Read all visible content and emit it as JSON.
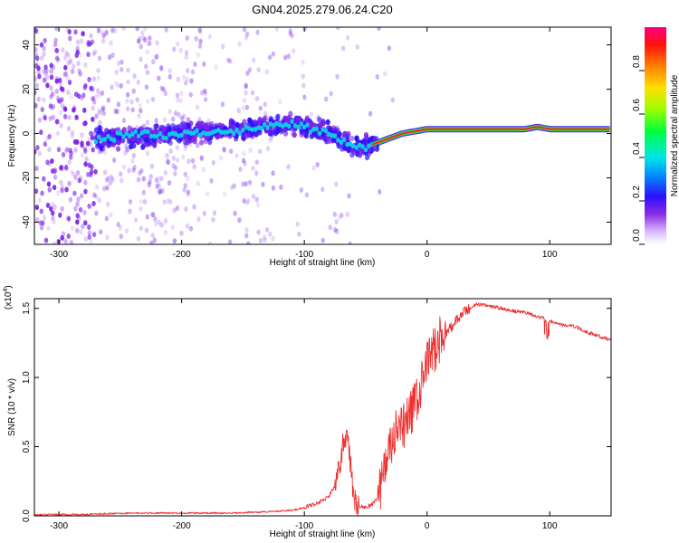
{
  "title": "GN04.2025.279.06.24.C20",
  "colors": {
    "snr_line": "#ee3030",
    "spec_point": "#7a20e8",
    "ridge_hot": "#ff2020",
    "ridge_warm": "#30e040",
    "ridge_cool": "#10c8e8"
  },
  "chart_data": [
    {
      "id": "spectrogram",
      "type": "heatmap",
      "xlabel": "Height of straight line (km)",
      "ylabel": "Frequency (Hz)",
      "xlim": [
        -320,
        150
      ],
      "ylim": [
        -50,
        48
      ],
      "xticks": [
        -300,
        -200,
        -100,
        0,
        100
      ],
      "yticks": [
        -40,
        -20,
        0,
        20,
        40
      ],
      "xtick_labels": [
        "-300",
        "-200",
        "-100",
        "0",
        "100"
      ],
      "ytick_labels": [
        "-40",
        "-20",
        "0",
        "20",
        "40"
      ],
      "colorbar": {
        "label": "Normalized spectral amplitude",
        "range": [
          0,
          1
        ],
        "ticks": [
          0.0,
          0.2,
          0.4,
          0.6,
          0.8
        ],
        "tick_labels": [
          "0.0",
          "0.2",
          "0.4",
          "0.6",
          "0.8"
        ]
      },
      "ridge": {
        "x": [
          -270,
          -240,
          -200,
          -170,
          -150,
          -130,
          -110,
          -100,
          -90,
          -80,
          -70,
          -60,
          -50,
          -40,
          -30,
          -20,
          -10,
          0,
          50,
          80,
          90,
          100,
          150
        ],
        "freq": [
          -2,
          -1,
          0,
          1,
          2,
          3,
          4,
          3,
          2,
          0,
          -3,
          -5,
          -6,
          -4,
          -2,
          0,
          1,
          2,
          2,
          2,
          3,
          2,
          2
        ],
        "amplitude": [
          0.35,
          0.4,
          0.35,
          0.4,
          0.45,
          0.45,
          0.4,
          0.45,
          0.45,
          0.4,
          0.35,
          0.35,
          0.45,
          0.7,
          0.8,
          0.85,
          0.9,
          0.95,
          0.95,
          0.95,
          0.9,
          0.95,
          0.95
        ]
      }
    },
    {
      "id": "snr",
      "type": "line",
      "xlabel": "Height of straight line (km)",
      "ylabel": "SNR (10 * v/v)",
      "y_multiplier": "(x10^4)",
      "y_multiplier_base": "(x10",
      "y_multiplier_exp": "4",
      "y_multiplier_close": ")",
      "xlim": [
        -320,
        150
      ],
      "ylim": [
        0,
        1.57
      ],
      "xticks": [
        -300,
        -200,
        -100,
        0,
        100
      ],
      "yticks": [
        0.0,
        0.5,
        1.0,
        1.5
      ],
      "xtick_labels": [
        "-300",
        "-200",
        "-100",
        "0",
        "100"
      ],
      "ytick_labels": [
        "0.0",
        "0.5",
        "1.0",
        "1.5"
      ],
      "series": [
        {
          "name": "SNR",
          "x": [
            -320,
            -280,
            -240,
            -200,
            -160,
            -130,
            -110,
            -100,
            -90,
            -80,
            -75,
            -70,
            -68,
            -66,
            -64,
            -62,
            -60,
            -58,
            -55,
            -52,
            -50,
            -45,
            -40,
            -35,
            -30,
            -25,
            -20,
            -15,
            -10,
            -5,
            0,
            5,
            10,
            20,
            30,
            40,
            50,
            60,
            70,
            80,
            90,
            95,
            98,
            100,
            110,
            120,
            130,
            140,
            150
          ],
          "values": [
            0.01,
            0.01,
            0.02,
            0.02,
            0.02,
            0.03,
            0.04,
            0.06,
            0.09,
            0.14,
            0.22,
            0.42,
            0.55,
            0.58,
            0.48,
            0.35,
            0.15,
            0.08,
            0.06,
            0.07,
            0.06,
            0.08,
            0.14,
            0.33,
            0.48,
            0.6,
            0.62,
            0.72,
            0.8,
            0.92,
            1.1,
            1.2,
            1.26,
            1.37,
            1.47,
            1.53,
            1.52,
            1.5,
            1.48,
            1.47,
            1.44,
            1.43,
            1.38,
            1.41,
            1.38,
            1.37,
            1.33,
            1.3,
            1.27
          ]
        }
      ]
    }
  ]
}
